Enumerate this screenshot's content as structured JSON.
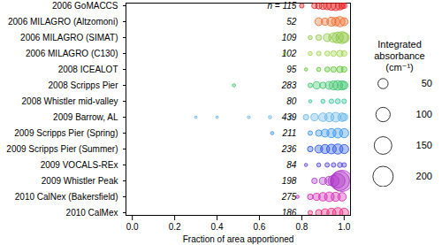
{
  "chart_data": {
    "type": "bubble",
    "xlabel": "Fraction of area apportioned",
    "xlim": [
      -0.03,
      1.03
    ],
    "xticks": [
      {
        "value": 0,
        "label": "0.0"
      },
      {
        "value": 0.2,
        "label": "0.2"
      },
      {
        "value": 0.4,
        "label": "0.4"
      },
      {
        "value": 0.6,
        "label": "0.6"
      },
      {
        "value": 0.8,
        "label": "0.8"
      },
      {
        "value": 1,
        "label": "1.0"
      }
    ],
    "size_legend": {
      "title": "Integrated absorbance (cm⁻¹)",
      "values": [
        50,
        100,
        150,
        200
      ]
    },
    "series": [
      {
        "name": "2006 GoMACCS",
        "color": "#e41a1c",
        "n": 115,
        "n_label": "n = 115",
        "x": [
          0.8,
          0.86,
          0.88,
          0.9,
          0.92,
          0.94,
          0.96,
          0.98,
          0.99,
          1.0
        ],
        "size": [
          10,
          15,
          20,
          25,
          30,
          40,
          45,
          35,
          20,
          15
        ]
      },
      {
        "name": "2006 MILAGRO (Altzomoni)",
        "color": "#f26522",
        "n": 52,
        "x": [
          0.88,
          0.91,
          0.94,
          0.96,
          0.98,
          1.0
        ],
        "size": [
          30,
          25,
          40,
          35,
          50,
          30
        ]
      },
      {
        "name": "2006 MILAGRO (SIMAT)",
        "color": "#8dc63f",
        "n": 109,
        "x": [
          0.84,
          0.88,
          0.92,
          0.95,
          0.97,
          0.99,
          1.0
        ],
        "size": [
          8,
          15,
          30,
          45,
          60,
          70,
          50
        ]
      },
      {
        "name": "2006 MILAGRO (C130)",
        "color": "#9fd44a",
        "n": 102,
        "x": [
          0.72,
          0.84,
          0.88,
          0.92,
          0.95,
          0.98,
          1.0
        ],
        "size": [
          5,
          8,
          10,
          12,
          15,
          20,
          15
        ]
      },
      {
        "name": "2008 ICEALOT",
        "color": "#5cc531",
        "n": 95,
        "x": [
          0.82,
          0.88,
          0.92,
          0.95,
          0.98,
          1.0
        ],
        "size": [
          5,
          8,
          12,
          15,
          20,
          15
        ]
      },
      {
        "name": "2008 Scripps Pier",
        "color": "#39c36a",
        "n": 283,
        "x": [
          0.48,
          0.84,
          0.87,
          0.9,
          0.93,
          0.95,
          0.97,
          0.99,
          1.0
        ],
        "size": [
          5,
          10,
          25,
          20,
          30,
          40,
          45,
          40,
          30
        ]
      },
      {
        "name": "2008 Whistler mid-valley",
        "color": "#2fc39a",
        "n": 80,
        "x": [
          0.84,
          0.9,
          0.94,
          0.97,
          1.0
        ],
        "size": [
          5,
          8,
          10,
          12,
          10
        ]
      },
      {
        "name": "2009 Barrow, AL",
        "color": "#5fb2e6",
        "n": 439,
        "x": [
          0.3,
          0.4,
          0.55,
          0.65,
          0.75,
          0.82,
          0.86,
          0.9,
          0.93,
          0.96,
          0.99,
          1.0
        ],
        "size": [
          3,
          3,
          4,
          5,
          8,
          15,
          25,
          35,
          40,
          45,
          35,
          25
        ]
      },
      {
        "name": "2009 Scripps Pier (Spring)",
        "color": "#2e8ff0",
        "n": 211,
        "x": [
          0.66,
          0.84,
          0.88,
          0.91,
          0.94,
          0.97,
          1.0
        ],
        "size": [
          5,
          10,
          20,
          30,
          40,
          45,
          40
        ]
      },
      {
        "name": "2009 Scripps Pier (Summer)",
        "color": "#1f4fe0",
        "n": 236,
        "x": [
          0.84,
          0.88,
          0.91,
          0.94,
          0.97,
          1.0
        ],
        "size": [
          15,
          30,
          40,
          45,
          50,
          40
        ]
      },
      {
        "name": "2009 VOCALS-REx",
        "color": "#4b3fd6",
        "n": 84,
        "x": [
          0.82,
          0.88,
          0.92,
          0.95,
          0.98,
          1.0
        ],
        "size": [
          5,
          8,
          10,
          10,
          12,
          10
        ]
      },
      {
        "name": "2009 Whistler Peak",
        "color": "#b033c8",
        "n": 198,
        "x": [
          0.86,
          0.9,
          0.93,
          0.95,
          0.97,
          0.98,
          0.99
        ],
        "size": [
          15,
          25,
          40,
          60,
          100,
          180,
          220
        ]
      },
      {
        "name": "2010 CalNex (Bakersfield)",
        "color": "#d21fb0",
        "n": 275,
        "x": [
          0.78,
          0.84,
          0.87,
          0.9,
          0.93,
          0.96,
          0.99
        ],
        "size": [
          5,
          15,
          25,
          35,
          45,
          40,
          35
        ]
      },
      {
        "name": "2010 CalMex",
        "color": "#ea2079",
        "n": 186,
        "x": [
          0.84,
          0.88,
          0.91,
          0.94,
          0.97,
          1.0
        ],
        "size": [
          10,
          20,
          30,
          40,
          50,
          40
        ]
      }
    ]
  }
}
